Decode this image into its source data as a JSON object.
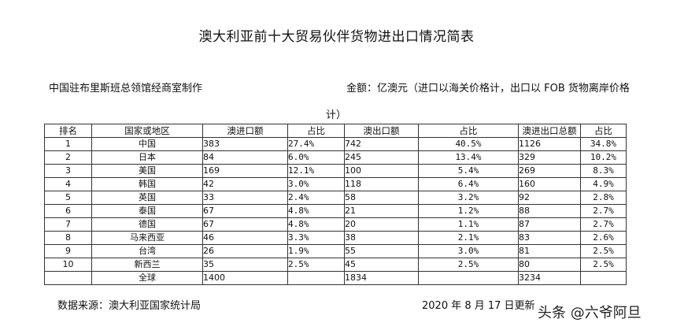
{
  "title": "澳大利亚前十大贸易伙伴货物进出口情况简表",
  "producer": "中国驻布里斯班总领馆经商室制作",
  "unit_line1": "金额：亿澳元（进口以海关价格计，出口以 FOB 货物离岸价格",
  "unit_line2": "计）",
  "headers": [
    "排名",
    "国家或地区",
    "澳进口额",
    "占比",
    "澳出口额",
    "占比",
    "澳进出口总额",
    "占比"
  ],
  "rows": [
    {
      "rank": "1",
      "country": "中国",
      "imp": "383",
      "imp_share": "27.4%",
      "exp": "742",
      "exp_share": "40.5%",
      "total": "1126",
      "total_share": "34.8%"
    },
    {
      "rank": "2",
      "country": "日本",
      "imp": "84",
      "imp_share": "6.0%",
      "exp": "245",
      "exp_share": "13.4%",
      "total": "329",
      "total_share": "10.2%"
    },
    {
      "rank": "3",
      "country": "美国",
      "imp": "169",
      "imp_share": "12.1%",
      "exp": "100",
      "exp_share": "5.4%",
      "total": "269",
      "total_share": "8.3%"
    },
    {
      "rank": "4",
      "country": "韩国",
      "imp": "42",
      "imp_share": "3.0%",
      "exp": "118",
      "exp_share": "6.4%",
      "total": "160",
      "total_share": "4.9%"
    },
    {
      "rank": "5",
      "country": "英国",
      "imp": "33",
      "imp_share": "2.4%",
      "exp": "58",
      "exp_share": "3.2%",
      "total": "92",
      "total_share": "2.8%"
    },
    {
      "rank": "6",
      "country": "泰国",
      "imp": "67",
      "imp_share": "4.8%",
      "exp": "21",
      "exp_share": "1.2%",
      "total": "88",
      "total_share": "2.7%"
    },
    {
      "rank": "7",
      "country": "德国",
      "imp": "67",
      "imp_share": "4.8%",
      "exp": "20",
      "exp_share": "1.1%",
      "total": "87",
      "total_share": "2.7%"
    },
    {
      "rank": "8",
      "country": "马来西亚",
      "imp": "46",
      "imp_share": "3.3%",
      "exp": "38",
      "exp_share": "2.1%",
      "total": "83",
      "total_share": "2.6%"
    },
    {
      "rank": "9",
      "country": "台湾",
      "imp": "26",
      "imp_share": "1.9%",
      "exp": "55",
      "exp_share": "3.0%",
      "total": "81",
      "total_share": "2.5%"
    },
    {
      "rank": "10",
      "country": "新西兰",
      "imp": "35",
      "imp_share": "2.5%",
      "exp": "45",
      "exp_share": "2.5%",
      "total": "80",
      "total_share": "2.5%"
    }
  ],
  "global": {
    "label": "全球",
    "imp": "1400",
    "exp": "1834",
    "total": "3234"
  },
  "source": "数据来源：澳大利亚国家统计局",
  "updated": "2020 年 8 月 17 日更新",
  "watermark": "头条 @六爷阿旦"
}
